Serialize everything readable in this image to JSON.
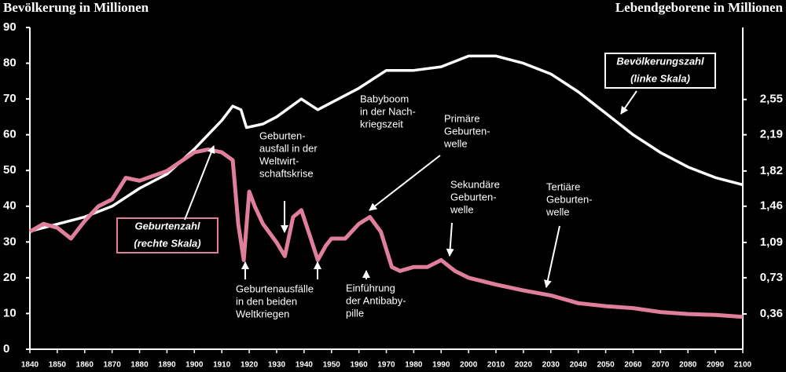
{
  "chart_data": {
    "type": "line",
    "y_label": "Bevölkerung in Millionen",
    "y2_label": "Lebendgeborene in Millionen",
    "xlim": [
      1840,
      2100
    ],
    "xticks": [
      1840,
      1850,
      1860,
      1870,
      1880,
      1890,
      1900,
      1910,
      1920,
      1930,
      1940,
      1950,
      1960,
      1970,
      1980,
      1990,
      2000,
      2010,
      2020,
      2030,
      2040,
      2050,
      2060,
      2070,
      2080,
      2090,
      2100
    ],
    "ylim": [
      0,
      90
    ],
    "yticks": [
      0,
      10,
      20,
      30,
      40,
      50,
      60,
      70,
      80,
      90
    ],
    "y2lim": [
      0,
      3.285
    ],
    "y2ticks": [
      {
        "value": 0.36,
        "label": "0,36"
      },
      {
        "value": 0.73,
        "label": "0,73"
      },
      {
        "value": 1.09,
        "label": "1,09"
      },
      {
        "value": 1.46,
        "label": "1,46"
      },
      {
        "value": 1.82,
        "label": "1,82"
      },
      {
        "value": 2.19,
        "label": "2,19"
      },
      {
        "value": 2.55,
        "label": "2,55"
      }
    ],
    "series": [
      {
        "name": "Bevölkerungszahl",
        "color": "#ffffff",
        "axis": "y",
        "x": [
          1840,
          1850,
          1860,
          1870,
          1880,
          1890,
          1900,
          1910,
          1914,
          1917,
          1919,
          1925,
          1930,
          1939,
          1945,
          1950,
          1960,
          1970,
          1980,
          1990,
          2000,
          2010,
          2020,
          2030,
          2040,
          2050,
          2060,
          2070,
          2080,
          2090,
          2100
        ],
        "values": [
          33,
          35,
          37,
          40,
          45,
          49,
          56,
          64,
          68,
          67,
          62,
          63,
          65,
          70,
          67,
          69,
          73,
          78,
          78,
          79,
          82,
          82,
          80,
          77,
          72,
          66,
          60,
          55,
          51,
          48,
          46
        ]
      },
      {
        "name": "Geburtenzahl",
        "color": "#e07f9c",
        "axis": "y2",
        "x": [
          1840,
          1845,
          1850,
          1855,
          1860,
          1865,
          1870,
          1875,
          1880,
          1890,
          1900,
          1905,
          1910,
          1914,
          1916,
          1918,
          1920,
          1922,
          1925,
          1930,
          1933,
          1936,
          1939,
          1942,
          1945,
          1948,
          1950,
          1955,
          1960,
          1964,
          1968,
          1972,
          1975,
          1980,
          1985,
          1990,
          1995,
          2000,
          2010,
          2020,
          2030,
          2040,
          2050,
          2060,
          2070,
          2080,
          2090,
          2100
        ],
        "values": [
          1.2,
          1.28,
          1.24,
          1.13,
          1.31,
          1.46,
          1.53,
          1.75,
          1.72,
          1.82,
          2.01,
          2.04,
          2.01,
          1.93,
          1.28,
          0.91,
          1.61,
          1.46,
          1.28,
          1.09,
          0.95,
          1.35,
          1.42,
          1.17,
          0.91,
          1.06,
          1.13,
          1.13,
          1.28,
          1.35,
          1.2,
          0.84,
          0.8,
          0.84,
          0.84,
          0.91,
          0.8,
          0.73,
          0.66,
          0.6,
          0.55,
          0.47,
          0.44,
          0.42,
          0.38,
          0.36,
          0.35,
          0.33
        ]
      }
    ],
    "annotations": [
      {
        "lines": [
          "Bevölkerungszahl",
          "(linke Skala)"
        ]
      },
      {
        "lines": [
          "Geburtenzahl",
          "(rechte Skala)"
        ]
      },
      {
        "lines": [
          "Geburten-",
          "ausfall in der",
          "Weltwirt-",
          "schaftskrise"
        ]
      },
      {
        "lines": [
          "Babyboom",
          "in der Nach-",
          "kriegszeit"
        ]
      },
      {
        "lines": [
          "Primäre",
          "Geburten-",
          "welle"
        ]
      },
      {
        "lines": [
          "Sekundäre",
          "Geburten-",
          "welle"
        ]
      },
      {
        "lines": [
          "Tertiäre",
          "Geburten-",
          "welle"
        ]
      },
      {
        "lines": [
          "Geburtenausfälle",
          "in den beiden",
          "Weltkriegen"
        ]
      },
      {
        "lines": [
          "Einführung",
          "der Antibaby-",
          "pille"
        ]
      }
    ]
  }
}
